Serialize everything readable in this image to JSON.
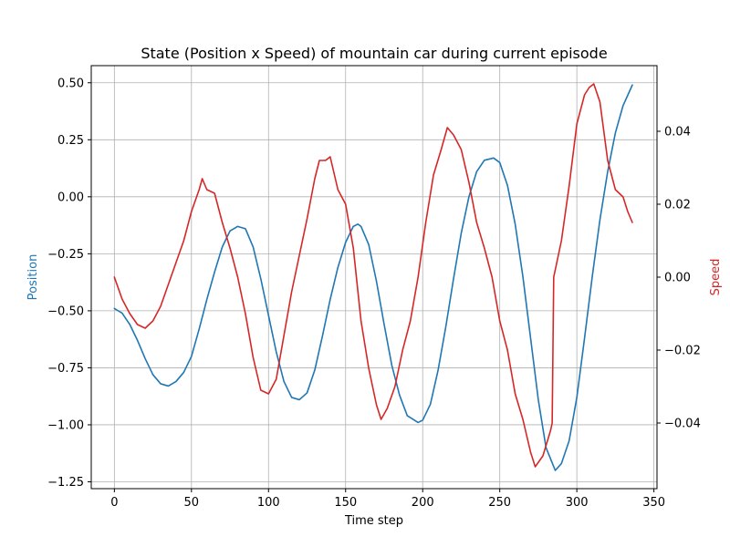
{
  "chart_data": {
    "type": "line",
    "title": "State (Position x Speed) of mountain car during current episode",
    "xlabel": "Time step",
    "ylabel_left": "Position",
    "ylabel_right": "Speed",
    "xlim": [
      -15,
      352
    ],
    "ylim_left": [
      -1.28,
      0.575
    ],
    "ylim_right": [
      -0.058,
      0.058
    ],
    "xticks": [
      0,
      50,
      100,
      150,
      200,
      250,
      300,
      350
    ],
    "yticks_left": [
      -1.25,
      -1.0,
      -0.75,
      -0.5,
      -0.25,
      0.0,
      0.25,
      0.5
    ],
    "yticks_left_labels": [
      "−1.25",
      "−1.00",
      "−0.75",
      "−0.50",
      "−0.25",
      "0.00",
      "0.25",
      "0.50"
    ],
    "yticks_right": [
      -0.04,
      -0.02,
      0.0,
      0.02,
      0.04
    ],
    "yticks_right_labels": [
      "−0.04",
      "−0.02",
      "0.00",
      "0.02",
      "0.04"
    ],
    "grid": true,
    "colors": {
      "position": "#1f77b4",
      "speed": "#d62728"
    },
    "series": [
      {
        "name": "Position",
        "axis": "left",
        "x": [
          0,
          5,
          10,
          15,
          20,
          25,
          30,
          35,
          40,
          45,
          50,
          55,
          60,
          65,
          70,
          75,
          80,
          85,
          90,
          95,
          100,
          105,
          110,
          115,
          120,
          125,
          130,
          135,
          140,
          145,
          150,
          155,
          158,
          160,
          165,
          170,
          175,
          180,
          185,
          190,
          197,
          200,
          205,
          210,
          215,
          220,
          225,
          230,
          235,
          240,
          246,
          250,
          255,
          260,
          265,
          270,
          275,
          280,
          286,
          290,
          295,
          300,
          305,
          310,
          315,
          320,
          325,
          330,
          336
        ],
        "y": [
          -0.49,
          -0.51,
          -0.56,
          -0.63,
          -0.71,
          -0.78,
          -0.82,
          -0.83,
          -0.81,
          -0.77,
          -0.7,
          -0.58,
          -0.45,
          -0.33,
          -0.22,
          -0.15,
          -0.13,
          -0.14,
          -0.22,
          -0.36,
          -0.52,
          -0.68,
          -0.81,
          -0.88,
          -0.89,
          -0.86,
          -0.76,
          -0.61,
          -0.45,
          -0.31,
          -0.2,
          -0.13,
          -0.12,
          -0.13,
          -0.21,
          -0.37,
          -0.56,
          -0.74,
          -0.87,
          -0.96,
          -0.99,
          -0.98,
          -0.91,
          -0.76,
          -0.57,
          -0.36,
          -0.16,
          0.0,
          0.11,
          0.16,
          0.17,
          0.15,
          0.05,
          -0.12,
          -0.35,
          -0.62,
          -0.89,
          -1.1,
          -1.2,
          -1.17,
          -1.07,
          -0.88,
          -0.62,
          -0.35,
          -0.1,
          0.11,
          0.28,
          0.4,
          0.49
        ]
      },
      {
        "name": "Speed",
        "axis": "right",
        "x": [
          0,
          5,
          10,
          15,
          20,
          25,
          30,
          35,
          40,
          45,
          50,
          55,
          57,
          60,
          65,
          70,
          75,
          80,
          85,
          90,
          95,
          100,
          105,
          110,
          115,
          120,
          125,
          130,
          133,
          137,
          140,
          145,
          150,
          155,
          160,
          165,
          170,
          173,
          177,
          182,
          187,
          192,
          197,
          202,
          207,
          212,
          216,
          220,
          225,
          230,
          235,
          240,
          245,
          250,
          255,
          260,
          265,
          270,
          273,
          278,
          283,
          284,
          285,
          290,
          295,
          300,
          305,
          308,
          311,
          315,
          320,
          325,
          330,
          333,
          336
        ],
        "y": [
          0.0,
          -0.006,
          -0.01,
          -0.013,
          -0.014,
          -0.012,
          -0.008,
          -0.002,
          0.004,
          0.01,
          0.018,
          0.024,
          0.027,
          0.024,
          0.023,
          0.015,
          0.008,
          0.0,
          -0.01,
          -0.022,
          -0.031,
          -0.032,
          -0.028,
          -0.016,
          -0.004,
          0.006,
          0.016,
          0.027,
          0.032,
          0.032,
          0.033,
          0.024,
          0.02,
          0.008,
          -0.012,
          -0.025,
          -0.035,
          -0.039,
          -0.036,
          -0.03,
          -0.02,
          -0.012,
          0.0,
          0.015,
          0.028,
          0.035,
          0.041,
          0.039,
          0.035,
          0.026,
          0.015,
          0.008,
          0.0,
          -0.012,
          -0.02,
          -0.032,
          -0.039,
          -0.048,
          -0.052,
          -0.049,
          -0.042,
          -0.04,
          0.0,
          0.01,
          0.025,
          0.042,
          0.05,
          0.052,
          0.053,
          0.048,
          0.032,
          0.024,
          0.022,
          0.018,
          0.015
        ]
      }
    ]
  }
}
